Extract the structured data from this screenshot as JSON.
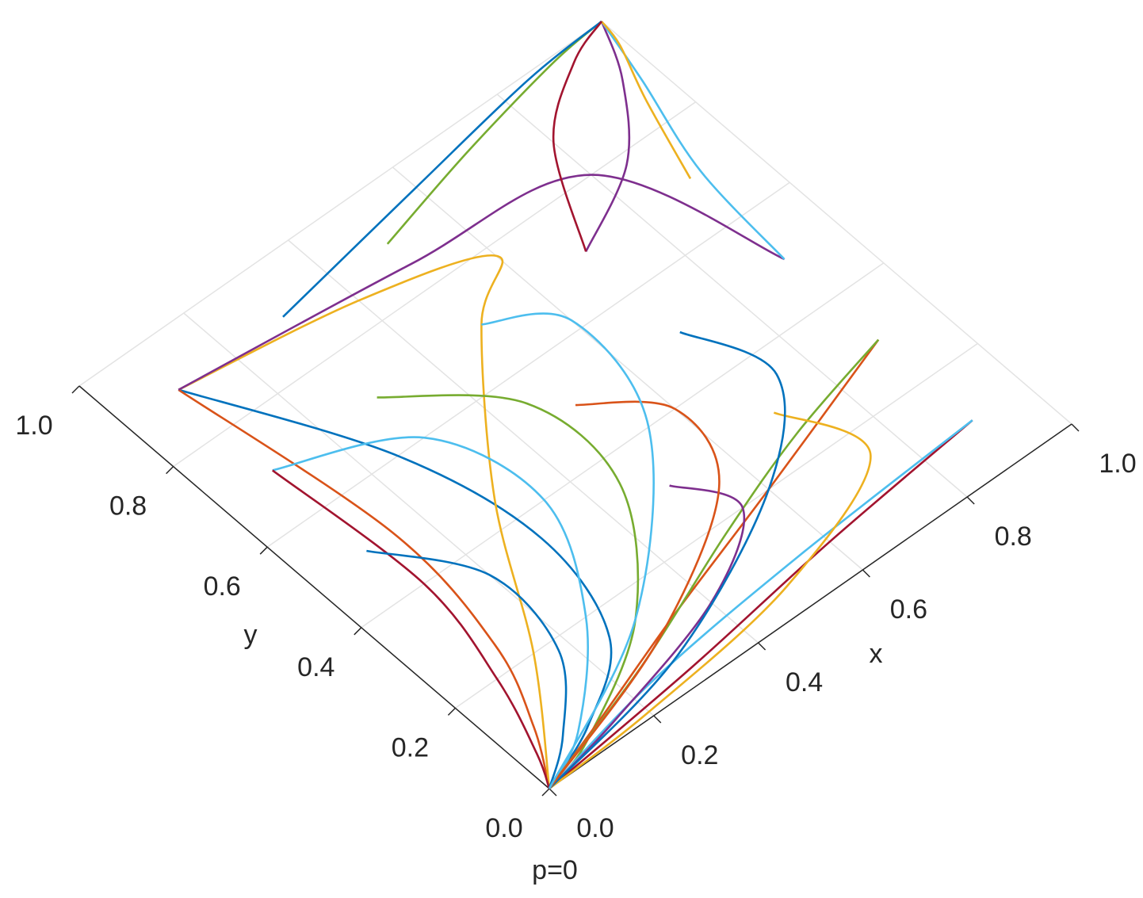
{
  "chart_data": {
    "type": "line",
    "title": "p=0",
    "x_label": "x",
    "y_label": "y",
    "xlim": [
      0,
      1
    ],
    "ylim": [
      0,
      1
    ],
    "xticks": [
      {
        "value": 0,
        "label": "0.0"
      },
      0.2,
      0.4,
      0.6,
      0.8,
      {
        "value": 1,
        "label": "1.0"
      }
    ],
    "yticks": [
      {
        "value": 0,
        "label": "0.0"
      },
      0.2,
      0.4,
      0.6,
      0.8,
      {
        "value": 1,
        "label": "1.0"
      }
    ],
    "grid": true,
    "series": [
      {
        "color": "#0072BD",
        "x": [
          0.1,
          0.25,
          0.3,
          0.25,
          0.12,
          0
        ],
        "values": [
          0.9,
          0.6,
          0.35,
          0.15,
          0.05,
          0
        ]
      },
      {
        "color": "#D95319",
        "x": [
          0.1,
          0.15,
          0.12,
          0.06,
          0
        ],
        "values": [
          0.9,
          0.5,
          0.25,
          0.1,
          0
        ]
      },
      {
        "color": "#EDB120",
        "x": [
          0.1,
          0.4,
          0.6,
          0.5,
          0.3,
          0.15,
          0
        ],
        "values": [
          0.9,
          0.85,
          0.78,
          0.7,
          0.45,
          0.2,
          0
        ]
      },
      {
        "color": "#7E2F8E",
        "x": [
          0.1,
          0.5,
          0.8,
          0.9
        ],
        "values": [
          0.9,
          0.85,
          0.8,
          0.5
        ]
      },
      {
        "color": "#77AC30",
        "x": [
          0.3,
          0.45,
          0.45,
          0.3,
          0.1,
          0
        ],
        "values": [
          0.7,
          0.55,
          0.35,
          0.15,
          0.03,
          0
        ]
      },
      {
        "color": "#4DBEEE",
        "x": [
          0.1,
          0.3,
          0.35,
          0.25,
          0.1,
          0
        ],
        "values": [
          0.7,
          0.6,
          0.4,
          0.2,
          0.05,
          0
        ]
      },
      {
        "color": "#A2142F",
        "x": [
          0.1,
          0.12,
          0.08,
          0.03,
          0
        ],
        "values": [
          0.7,
          0.4,
          0.2,
          0.06,
          0
        ]
      },
      {
        "color": "#0072BD",
        "x": [
          0.1,
          0.2,
          0.18,
          0.08,
          0
        ],
        "values": [
          0.5,
          0.35,
          0.18,
          0.06,
          0
        ]
      },
      {
        "color": "#D95319",
        "x": [
          0.9,
          0.6,
          0.35,
          0.15,
          0
        ],
        "values": [
          0.3,
          0.2,
          0.12,
          0.05,
          0
        ]
      },
      {
        "color": "#77AC30",
        "x": [
          0.9,
          0.7,
          0.5,
          0.25,
          0
        ],
        "values": [
          0.3,
          0.25,
          0.18,
          0.08,
          0
        ]
      },
      {
        "color": "#A2142F",
        "x": [
          0.9,
          0.6,
          0.3,
          0
        ],
        "values": [
          0.1,
          0.07,
          0.03,
          0
        ]
      },
      {
        "color": "#4DBEEE",
        "x": [
          0.9,
          0.55,
          0.25,
          0
        ],
        "values": [
          0.1,
          0.08,
          0.05,
          0
        ]
      },
      {
        "color": "#EDB120",
        "x": [
          0.7,
          0.75,
          0.5,
          0.2,
          0
        ],
        "values": [
          0.3,
          0.15,
          0.05,
          0.01,
          0
        ]
      },
      {
        "color": "#7E2F8E",
        "x": [
          0.5,
          0.55,
          0.4,
          0.15,
          0
        ],
        "values": [
          0.3,
          0.2,
          0.1,
          0.03,
          0
        ]
      },
      {
        "color": "#0072BD",
        "x": [
          0.7,
          0.75,
          0.6,
          0.3,
          0
        ],
        "values": [
          0.5,
          0.35,
          0.2,
          0.06,
          0
        ]
      },
      {
        "color": "#D95319",
        "x": [
          0.5,
          0.6,
          0.55,
          0.3,
          0
        ],
        "values": [
          0.5,
          0.4,
          0.25,
          0.1,
          0
        ]
      },
      {
        "color": "#4DBEEE",
        "x": [
          0.5,
          0.6,
          0.55,
          0.3,
          0
        ],
        "values": [
          0.7,
          0.62,
          0.4,
          0.15,
          0
        ]
      },
      {
        "color": "#77AC30",
        "x": [
          0.5,
          0.7,
          0.9,
          1
        ],
        "values": [
          0.9,
          0.95,
          0.99,
          1
        ]
      },
      {
        "color": "#0072BD",
        "x": [
          0.3,
          0.6,
          0.85,
          1
        ],
        "values": [
          0.9,
          0.95,
          0.99,
          1
        ]
      },
      {
        "color": "#7E2F8E",
        "x": [
          0.7,
          0.85,
          0.95,
          1
        ],
        "values": [
          0.7,
          0.78,
          0.9,
          1
        ]
      },
      {
        "color": "#4DBEEE",
        "x": [
          0.9,
          0.92,
          0.97,
          1
        ],
        "values": [
          0.5,
          0.7,
          0.88,
          1
        ]
      },
      {
        "color": "#EDB120",
        "x": [
          0.9,
          0.95,
          0.99,
          1
        ],
        "values": [
          0.7,
          0.85,
          0.95,
          1
        ]
      },
      {
        "color": "#A2142F",
        "x": [
          0.7,
          0.8,
          0.92,
          1
        ],
        "values": [
          0.7,
          0.88,
          0.97,
          1
        ]
      }
    ]
  }
}
